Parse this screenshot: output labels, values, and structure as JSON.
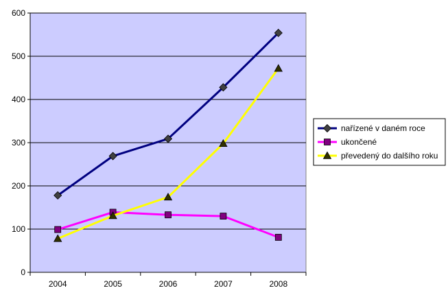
{
  "chart_data": {
    "type": "line",
    "title": "",
    "xlabel": "",
    "ylabel": "",
    "categories": [
      "2004",
      "2005",
      "2006",
      "2007",
      "2008"
    ],
    "ylim": [
      0,
      600
    ],
    "yticks": [
      0,
      100,
      200,
      300,
      400,
      500,
      600
    ],
    "grid": true,
    "legend_position": "right",
    "plot_background": "#ccccff",
    "series": [
      {
        "name": "nařízené v daném roce",
        "values": [
          178,
          269,
          309,
          428,
          554
        ],
        "color": "#000080",
        "marker": "diamond"
      },
      {
        "name": "ukončené",
        "values": [
          99,
          139,
          133,
          130,
          81
        ],
        "color": "#ff00ff",
        "marker": "square"
      },
      {
        "name": "převedený do dalšího roku",
        "values": [
          78,
          131,
          174,
          298,
          472
        ],
        "color": "#ffff00",
        "marker": "triangle"
      }
    ]
  }
}
